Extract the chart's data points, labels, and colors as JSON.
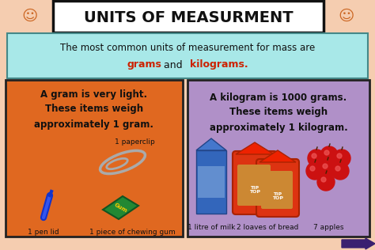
{
  "bg_color": "#f5cdb0",
  "title": "UNITS OF MEASURMENT",
  "title_box_color": "#ffffff",
  "title_border_color": "#111111",
  "subtitle_box_color": "#a8e8e8",
  "subtitle_line1": "The most common units of measurement for mass are",
  "subtitle_grams": "grams",
  "subtitle_and": " and ",
  "subtitle_kilograms": "kilograms.",
  "subtitle_color_highlight": "#cc2200",
  "left_box_color": "#e06820",
  "left_title": "A gram is very light.\nThese items weigh\napproximately 1 gram.",
  "left_items": [
    "1 paperclip",
    "1 pen lid",
    "1 piece of chewing gum"
  ],
  "right_box_color": "#b090c8",
  "right_title": "A kilogram is 1000 grams.\nThese items weigh\napproximately 1 kilogram.",
  "right_items": [
    "1 litre of milk",
    "2 loaves of bread",
    "7 apples"
  ],
  "arrow_color": "#3a2070",
  "text_color_dark": "#111111"
}
